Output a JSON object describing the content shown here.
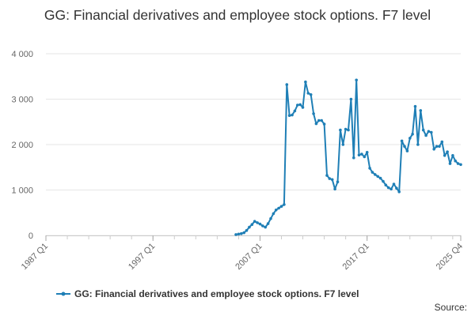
{
  "chart_data": {
    "type": "line",
    "title": "GG: Financial derivatives and employee stock options. F7 level",
    "xlabel": "",
    "ylabel": "",
    "ylim": [
      0,
      4000
    ],
    "grid": true,
    "legend_position": "bottom",
    "x_tick_labels": [
      "1987 Q1",
      "1997 Q1",
      "2007 Q1",
      "2017 Q1",
      "2025 Q4"
    ],
    "y_tick_labels": [
      "0",
      "1 000",
      "2 000",
      "3 000",
      "4 000"
    ],
    "y_ticks": [
      0,
      1000,
      2000,
      3000,
      4000
    ],
    "colors": {
      "series": "#1f7fb6",
      "grid": "#e6e6e6",
      "axis": "#ccc"
    },
    "series": [
      {
        "name": "GG: Financial derivatives and employee stock options. F7 level",
        "x": [
          "2004 Q4",
          "2005 Q1",
          "2005 Q2",
          "2005 Q3",
          "2005 Q4",
          "2006 Q1",
          "2006 Q2",
          "2006 Q3",
          "2006 Q4",
          "2007 Q1",
          "2007 Q2",
          "2007 Q3",
          "2007 Q4",
          "2008 Q1",
          "2008 Q2",
          "2008 Q3",
          "2008 Q4",
          "2009 Q1",
          "2009 Q2",
          "2009 Q3",
          "2009 Q4",
          "2010 Q1",
          "2010 Q2",
          "2010 Q3",
          "2010 Q4",
          "2011 Q1",
          "2011 Q2",
          "2011 Q3",
          "2011 Q4",
          "2012 Q1",
          "2012 Q2",
          "2012 Q3",
          "2012 Q4",
          "2013 Q1",
          "2013 Q2",
          "2013 Q3",
          "2013 Q4",
          "2014 Q1",
          "2014 Q2",
          "2014 Q3",
          "2014 Q4",
          "2015 Q1",
          "2015 Q2",
          "2015 Q3",
          "2015 Q4",
          "2016 Q1",
          "2016 Q2",
          "2016 Q3",
          "2016 Q4",
          "2017 Q1",
          "2017 Q2",
          "2017 Q3",
          "2017 Q4",
          "2018 Q1",
          "2018 Q2",
          "2018 Q3",
          "2018 Q4",
          "2019 Q1",
          "2019 Q2",
          "2019 Q3",
          "2019 Q4",
          "2020 Q1",
          "2020 Q2",
          "2020 Q3",
          "2020 Q4",
          "2021 Q1",
          "2021 Q2",
          "2021 Q3",
          "2021 Q4",
          "2022 Q1",
          "2022 Q2",
          "2022 Q3",
          "2022 Q4",
          "2023 Q1",
          "2023 Q2",
          "2023 Q3",
          "2023 Q4",
          "2024 Q1",
          "2024 Q2",
          "2024 Q3",
          "2024 Q4",
          "2025 Q1",
          "2025 Q2",
          "2025 Q3",
          "2025 Q4"
        ],
        "values": [
          20,
          30,
          40,
          60,
          110,
          180,
          240,
          310,
          280,
          250,
          210,
          180,
          260,
          370,
          480,
          560,
          600,
          640,
          680,
          3320,
          2640,
          2650,
          2740,
          2870,
          2880,
          2820,
          3380,
          3130,
          3100,
          2680,
          2460,
          2530,
          2530,
          2450,
          1320,
          1250,
          1230,
          1020,
          1180,
          2320,
          2000,
          2340,
          2320,
          3000,
          1710,
          3420,
          1770,
          1790,
          1730,
          1830,
          1480,
          1390,
          1340,
          1300,
          1260,
          1190,
          1110,
          1050,
          1020,
          1130,
          1040,
          960,
          2080,
          1960,
          1860,
          2140,
          2230,
          2840,
          2000,
          2750,
          2320,
          2200,
          2290,
          2270,
          1900,
          1960,
          1960,
          2060,
          1760,
          1840,
          1580,
          1760,
          1640,
          1580,
          1560
        ]
      }
    ]
  },
  "legend": {
    "label": "GG: Financial derivatives and employee stock options. F7 level"
  },
  "footer": {
    "source": "Source:"
  }
}
